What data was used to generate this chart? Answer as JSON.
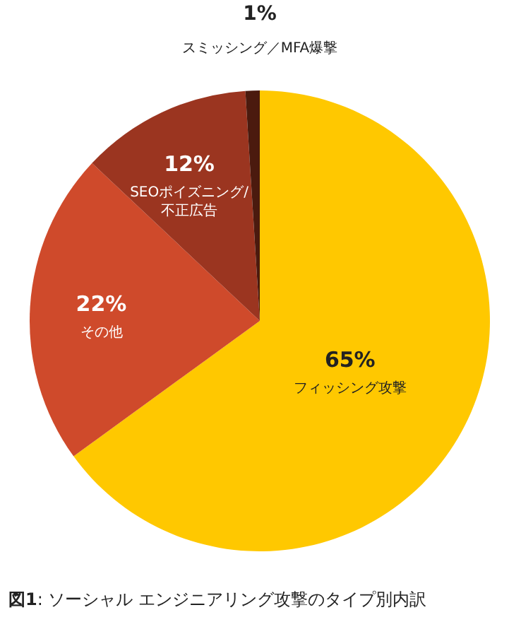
{
  "chart_data": {
    "type": "pie",
    "title": "**図1**: ソーシャル エンジニアリング攻撃のタイプ別内訳",
    "categories": [
      "フィッシング攻撃",
      "その他",
      "SEOポイズニング/不正広告",
      "スミッシング／MFA爆撃"
    ],
    "values": [
      65,
      22,
      12,
      1
    ],
    "colors": [
      "#ffc800",
      "#cf4a2b",
      "#9b3520",
      "#4b1a0e"
    ],
    "value_labels": [
      "65%",
      "22%",
      "12%",
      "1%"
    ]
  }
}
